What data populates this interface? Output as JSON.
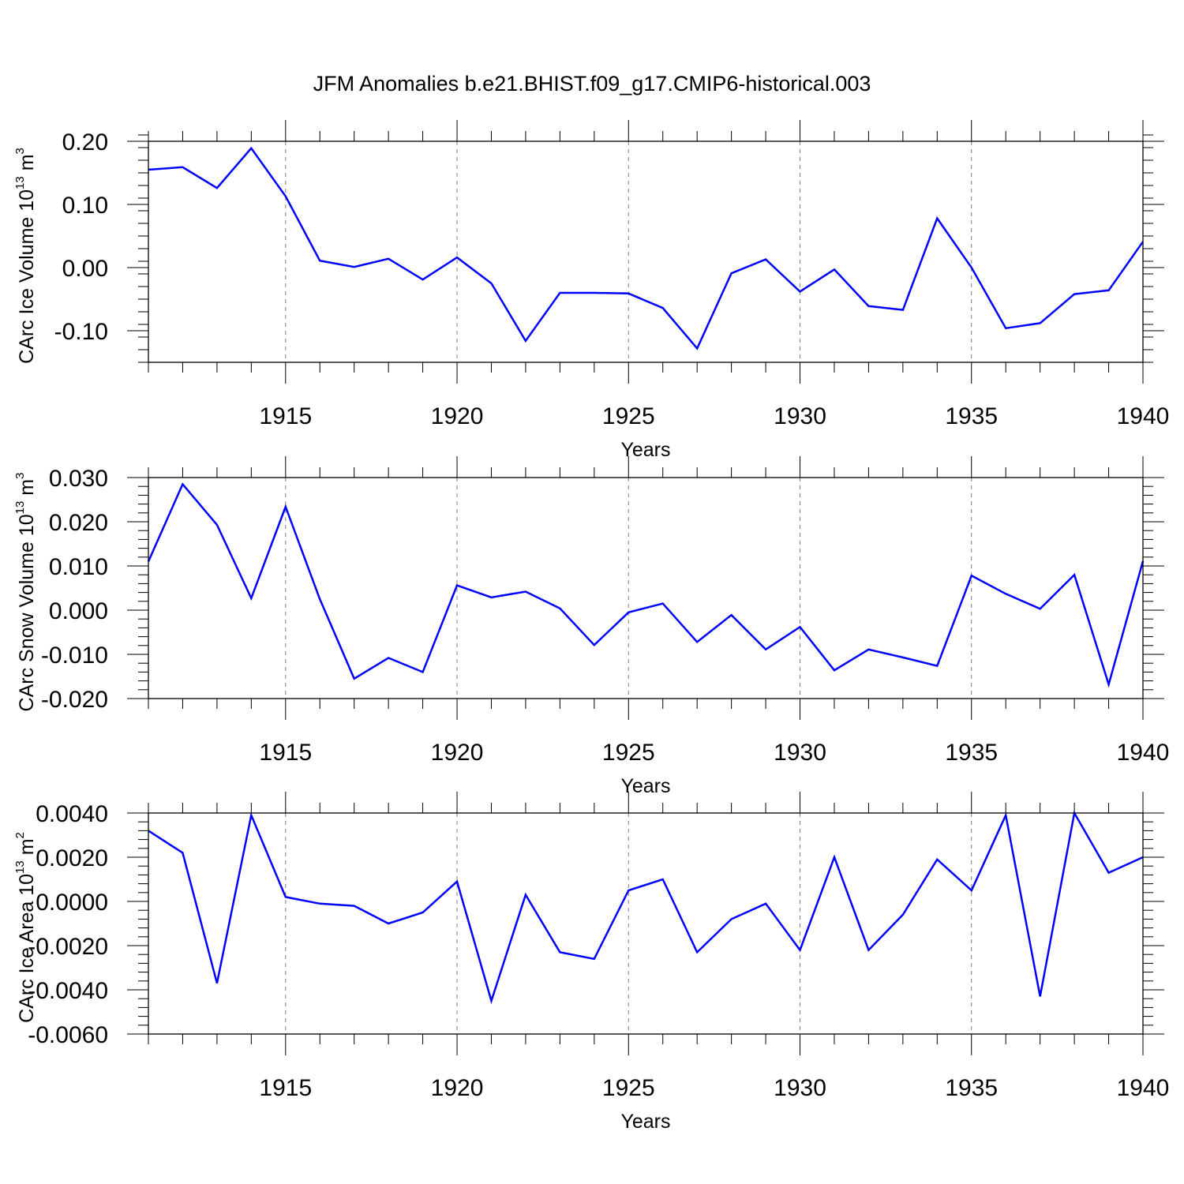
{
  "title": "JFM Anomalies b.e21.BHIST.f09_g17.CMIP6-historical.003",
  "colors": {
    "line": "#0000ff",
    "axis": "#000000",
    "grid": "#808080",
    "background": "#ffffff"
  },
  "chart_data": [
    {
      "type": "line",
      "ylabel": {
        "text": "CArc Ice Volume 10",
        "sup1": "13",
        "unit": " m",
        "sup2": "3"
      },
      "xlabel": "Years",
      "xlim": [
        1911,
        1940
      ],
      "ylim": [
        -0.15,
        0.2
      ],
      "x_ticks": [
        {
          "value": 1915,
          "label": "1915"
        },
        {
          "value": 1920,
          "label": "1920"
        },
        {
          "value": 1925,
          "label": "1925"
        },
        {
          "value": 1930,
          "label": "1930"
        },
        {
          "value": 1935,
          "label": "1935"
        },
        {
          "value": 1940,
          "label": "1940"
        }
      ],
      "y_ticks": [
        {
          "value": 0.2,
          "label": "0.20"
        },
        {
          "value": 0.1,
          "label": "0.10"
        },
        {
          "value": 0.0,
          "label": "0.00"
        },
        {
          "value": -0.1,
          "label": "-0.10"
        }
      ],
      "y_minor_step": 0.02,
      "grid": "dashed vertical at labeled years",
      "series": [
        {
          "name": "CArc Ice Volume",
          "x": [
            1911,
            1912,
            1913,
            1914,
            1915,
            1916,
            1917,
            1918,
            1919,
            1920,
            1921,
            1922,
            1923,
            1924,
            1925,
            1926,
            1927,
            1928,
            1929,
            1930,
            1931,
            1932,
            1933,
            1934,
            1935,
            1936,
            1937,
            1938,
            1939,
            1940
          ],
          "values": [
            0.155,
            0.159,
            0.126,
            0.189,
            0.113,
            0.011,
            0.001,
            0.014,
            -0.019,
            0.016,
            -0.025,
            -0.116,
            -0.04,
            -0.04,
            -0.041,
            -0.064,
            -0.128,
            -0.009,
            0.013,
            -0.038,
            -0.003,
            -0.061,
            -0.067,
            0.078,
            0.0,
            -0.096,
            -0.088,
            -0.042,
            -0.036,
            0.041
          ]
        }
      ]
    },
    {
      "type": "line",
      "ylabel": {
        "text": "CArc Snow Volume 10",
        "sup1": "13",
        "unit": " m",
        "sup2": "3"
      },
      "xlabel": "Years",
      "xlim": [
        1911,
        1940
      ],
      "ylim": [
        -0.02,
        0.03
      ],
      "x_ticks": [
        {
          "value": 1915,
          "label": "1915"
        },
        {
          "value": 1920,
          "label": "1920"
        },
        {
          "value": 1925,
          "label": "1925"
        },
        {
          "value": 1930,
          "label": "1930"
        },
        {
          "value": 1935,
          "label": "1935"
        },
        {
          "value": 1940,
          "label": "1940"
        }
      ],
      "y_ticks": [
        {
          "value": 0.03,
          "label": "0.030"
        },
        {
          "value": 0.02,
          "label": "0.020"
        },
        {
          "value": 0.01,
          "label": "0.010"
        },
        {
          "value": 0.0,
          "label": "0.000"
        },
        {
          "value": -0.01,
          "label": "-0.010"
        },
        {
          "value": -0.02,
          "label": "-0.020"
        }
      ],
      "y_minor_step": 0.002,
      "grid": "dashed vertical at labeled years",
      "series": [
        {
          "name": "CArc Snow Volume",
          "x": [
            1911,
            1912,
            1913,
            1914,
            1915,
            1916,
            1917,
            1918,
            1919,
            1920,
            1921,
            1922,
            1923,
            1924,
            1925,
            1926,
            1927,
            1928,
            1929,
            1930,
            1931,
            1932,
            1933,
            1934,
            1935,
            1936,
            1937,
            1938,
            1939,
            1940
          ],
          "values": [
            0.011,
            0.0285,
            0.0193,
            0.0027,
            0.0234,
            0.0025,
            -0.0155,
            -0.0108,
            -0.014,
            0.0056,
            0.0029,
            0.0042,
            0.0004,
            -0.0079,
            -0.0005,
            0.0015,
            -0.0072,
            -0.0011,
            -0.0089,
            -0.0038,
            -0.0136,
            -0.0089,
            -0.0107,
            -0.0126,
            0.0078,
            0.0037,
            0.0003,
            0.008,
            -0.0168,
            0.0111
          ]
        }
      ]
    },
    {
      "type": "line",
      "ylabel": {
        "text": "CArc Ice Area 10",
        "sup1": "13",
        "unit": " m",
        "sup2": "2"
      },
      "xlabel": "Years",
      "xlim": [
        1911,
        1940
      ],
      "ylim": [
        -0.006,
        0.004
      ],
      "x_ticks": [
        {
          "value": 1915,
          "label": "1915"
        },
        {
          "value": 1920,
          "label": "1920"
        },
        {
          "value": 1925,
          "label": "1925"
        },
        {
          "value": 1930,
          "label": "1930"
        },
        {
          "value": 1935,
          "label": "1935"
        },
        {
          "value": 1940,
          "label": "1940"
        }
      ],
      "y_ticks": [
        {
          "value": 0.004,
          "label": "0.0040"
        },
        {
          "value": 0.002,
          "label": "0.0020"
        },
        {
          "value": 0.0,
          "label": "0.0000"
        },
        {
          "value": -0.002,
          "label": "-0.0020"
        },
        {
          "value": -0.004,
          "label": "-0.0040"
        },
        {
          "value": -0.006,
          "label": "-0.0060"
        }
      ],
      "y_minor_step": 0.0004,
      "grid": "dashed vertical at labeled years",
      "series": [
        {
          "name": "CArc Ice Area",
          "x": [
            1911,
            1912,
            1913,
            1914,
            1915,
            1916,
            1917,
            1918,
            1919,
            1920,
            1921,
            1922,
            1923,
            1924,
            1925,
            1926,
            1927,
            1928,
            1929,
            1930,
            1931,
            1932,
            1933,
            1934,
            1935,
            1936,
            1937,
            1938,
            1939,
            1940
          ],
          "values": [
            0.0032,
            0.0022,
            -0.0037,
            0.0039,
            0.0002,
            -0.0001,
            -0.0002,
            -0.001,
            -0.0005,
            0.0009,
            -0.0045,
            0.0003,
            -0.0023,
            -0.0026,
            0.0005,
            0.001,
            -0.0023,
            -0.0008,
            -0.0001,
            -0.0022,
            0.002,
            -0.0022,
            -0.0006,
            0.0019,
            0.0005,
            0.0039,
            -0.0043,
            0.004,
            0.0013,
            0.002
          ]
        }
      ]
    }
  ]
}
